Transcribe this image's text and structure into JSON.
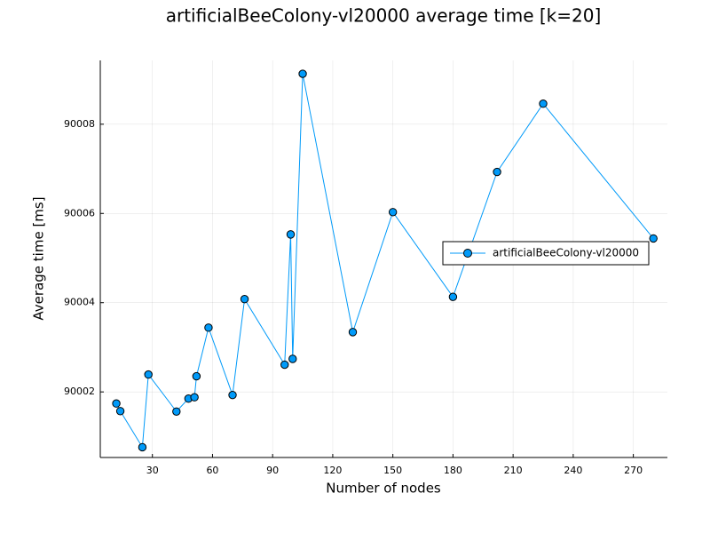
{
  "chart_data": {
    "type": "line",
    "title": "artificialBeeColony-vl20000 average time [k=20]",
    "xlabel": "Number of nodes",
    "ylabel": "Average time [ms]",
    "xlim": [
      4,
      287
    ],
    "ylim": [
      90000.53,
      90009.43
    ],
    "xticks": [
      30,
      60,
      90,
      120,
      150,
      180,
      210,
      240,
      270
    ],
    "yticks": [
      90002,
      90004,
      90006,
      90008
    ],
    "grid": true,
    "legend_position": "right",
    "series": [
      {
        "name": "artificialBeeColony-vl20000",
        "color": "#009af9",
        "marker": "circle",
        "x": [
          12,
          14,
          25,
          28,
          42,
          48,
          51,
          52,
          58,
          70,
          76,
          96,
          99,
          100,
          105,
          130,
          150,
          180,
          202,
          225,
          280
        ],
        "y": [
          90001.74,
          90001.57,
          90000.76,
          90002.39,
          90001.56,
          90001.85,
          90001.88,
          90002.35,
          90003.44,
          90001.93,
          90004.08,
          90002.61,
          90005.53,
          90002.74,
          90009.13,
          90003.34,
          90006.03,
          90004.13,
          90006.93,
          90008.46,
          90005.44
        ]
      }
    ]
  }
}
